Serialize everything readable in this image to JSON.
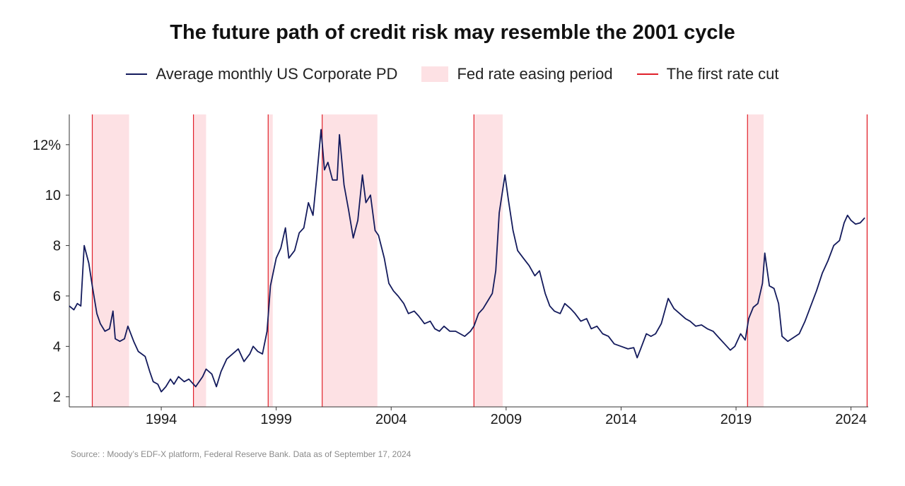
{
  "chart_data": {
    "type": "line",
    "title": "The future path of credit risk may resemble the 2001 cycle",
    "legend": [
      {
        "label": "Average monthly US Corporate PD",
        "kind": "line",
        "color": "#131a5c"
      },
      {
        "label": "Fed rate easing period",
        "kind": "box",
        "color": "#fde1e4"
      },
      {
        "label": "The first rate cut",
        "kind": "line",
        "color": "#e0202a"
      }
    ],
    "xlim": [
      1990.0,
      2024.75
    ],
    "ylim": [
      1.6,
      13.2
    ],
    "x_ticks": [
      1994,
      1999,
      2004,
      2009,
      2014,
      2019,
      2024
    ],
    "x_tick_labels": [
      "1994",
      "1999",
      "2004",
      "2009",
      "2014",
      "2019",
      "2024"
    ],
    "y_ticks": [
      2,
      4,
      6,
      8,
      10,
      12
    ],
    "y_tick_labels": [
      "2",
      "4",
      "6",
      "8",
      "10",
      "12%"
    ],
    "easing_periods": [
      [
        1991.0,
        1992.6
      ],
      [
        1995.4,
        1995.95
      ],
      [
        1998.65,
        1998.85
      ],
      [
        2001.0,
        2003.4
      ],
      [
        2007.6,
        2008.85
      ],
      [
        2019.5,
        2020.2
      ],
      [
        2024.7,
        2024.75
      ]
    ],
    "first_rate_cuts": [
      1991.0,
      1995.4,
      1998.65,
      2001.0,
      2007.6,
      2019.5,
      2024.7
    ],
    "series": [
      {
        "name": "Average monthly US Corporate PD",
        "color": "#131a5c",
        "points": [
          [
            1990.0,
            5.6
          ],
          [
            1990.2,
            5.45
          ],
          [
            1990.35,
            5.7
          ],
          [
            1990.5,
            5.6
          ],
          [
            1990.65,
            8.0
          ],
          [
            1990.85,
            7.3
          ],
          [
            1991.0,
            6.4
          ],
          [
            1991.2,
            5.3
          ],
          [
            1991.35,
            4.9
          ],
          [
            1991.55,
            4.6
          ],
          [
            1991.75,
            4.7
          ],
          [
            1991.9,
            5.4
          ],
          [
            1992.0,
            4.3
          ],
          [
            1992.2,
            4.2
          ],
          [
            1992.4,
            4.3
          ],
          [
            1992.55,
            4.8
          ],
          [
            1992.8,
            4.2
          ],
          [
            1993.0,
            3.8
          ],
          [
            1993.3,
            3.6
          ],
          [
            1993.5,
            3.0
          ],
          [
            1993.65,
            2.6
          ],
          [
            1993.85,
            2.5
          ],
          [
            1994.0,
            2.2
          ],
          [
            1994.2,
            2.4
          ],
          [
            1994.4,
            2.7
          ],
          [
            1994.55,
            2.5
          ],
          [
            1994.75,
            2.8
          ],
          [
            1995.0,
            2.6
          ],
          [
            1995.2,
            2.7
          ],
          [
            1995.5,
            2.4
          ],
          [
            1995.8,
            2.8
          ],
          [
            1995.95,
            3.1
          ],
          [
            1996.2,
            2.9
          ],
          [
            1996.4,
            2.4
          ],
          [
            1996.6,
            3.0
          ],
          [
            1996.85,
            3.5
          ],
          [
            1997.1,
            3.7
          ],
          [
            1997.35,
            3.9
          ],
          [
            1997.6,
            3.4
          ],
          [
            1997.85,
            3.7
          ],
          [
            1998.0,
            4.0
          ],
          [
            1998.2,
            3.8
          ],
          [
            1998.4,
            3.7
          ],
          [
            1998.6,
            4.6
          ],
          [
            1998.75,
            6.4
          ],
          [
            1999.0,
            7.5
          ],
          [
            1999.2,
            7.9
          ],
          [
            1999.4,
            8.7
          ],
          [
            1999.55,
            7.5
          ],
          [
            1999.8,
            7.8
          ],
          [
            2000.0,
            8.5
          ],
          [
            2000.2,
            8.7
          ],
          [
            2000.4,
            9.7
          ],
          [
            2000.6,
            9.2
          ],
          [
            2000.75,
            10.6
          ],
          [
            2000.95,
            12.6
          ],
          [
            2001.1,
            11.0
          ],
          [
            2001.25,
            11.3
          ],
          [
            2001.45,
            10.6
          ],
          [
            2001.65,
            10.6
          ],
          [
            2001.75,
            12.4
          ],
          [
            2001.95,
            10.4
          ],
          [
            2002.15,
            9.4
          ],
          [
            2002.35,
            8.3
          ],
          [
            2002.55,
            9.0
          ],
          [
            2002.75,
            10.8
          ],
          [
            2002.9,
            9.7
          ],
          [
            2003.1,
            10.0
          ],
          [
            2003.3,
            8.6
          ],
          [
            2003.45,
            8.4
          ],
          [
            2003.7,
            7.5
          ],
          [
            2003.9,
            6.5
          ],
          [
            2004.1,
            6.2
          ],
          [
            2004.3,
            6.0
          ],
          [
            2004.55,
            5.7
          ],
          [
            2004.75,
            5.3
          ],
          [
            2005.0,
            5.4
          ],
          [
            2005.2,
            5.2
          ],
          [
            2005.45,
            4.9
          ],
          [
            2005.7,
            5.0
          ],
          [
            2005.9,
            4.7
          ],
          [
            2006.1,
            4.6
          ],
          [
            2006.3,
            4.8
          ],
          [
            2006.55,
            4.6
          ],
          [
            2006.8,
            4.6
          ],
          [
            2007.0,
            4.5
          ],
          [
            2007.2,
            4.4
          ],
          [
            2007.45,
            4.6
          ],
          [
            2007.6,
            4.8
          ],
          [
            2007.8,
            5.3
          ],
          [
            2008.0,
            5.5
          ],
          [
            2008.2,
            5.8
          ],
          [
            2008.4,
            6.1
          ],
          [
            2008.55,
            7.0
          ],
          [
            2008.7,
            9.3
          ],
          [
            2008.95,
            10.8
          ],
          [
            2009.1,
            9.8
          ],
          [
            2009.3,
            8.6
          ],
          [
            2009.5,
            7.8
          ],
          [
            2009.75,
            7.5
          ],
          [
            2010.0,
            7.2
          ],
          [
            2010.25,
            6.8
          ],
          [
            2010.45,
            7.0
          ],
          [
            2010.7,
            6.1
          ],
          [
            2010.9,
            5.6
          ],
          [
            2011.1,
            5.4
          ],
          [
            2011.35,
            5.3
          ],
          [
            2011.55,
            5.7
          ],
          [
            2011.8,
            5.5
          ],
          [
            2012.0,
            5.3
          ],
          [
            2012.25,
            5.0
          ],
          [
            2012.5,
            5.1
          ],
          [
            2012.7,
            4.7
          ],
          [
            2012.95,
            4.8
          ],
          [
            2013.2,
            4.5
          ],
          [
            2013.45,
            4.4
          ],
          [
            2013.7,
            4.1
          ],
          [
            2014.0,
            4.0
          ],
          [
            2014.3,
            3.9
          ],
          [
            2014.55,
            3.95
          ],
          [
            2014.7,
            3.55
          ],
          [
            2014.85,
            3.9
          ],
          [
            2015.1,
            4.5
          ],
          [
            2015.3,
            4.4
          ],
          [
            2015.5,
            4.5
          ],
          [
            2015.75,
            4.9
          ],
          [
            2016.05,
            5.9
          ],
          [
            2016.3,
            5.5
          ],
          [
            2016.55,
            5.3
          ],
          [
            2016.8,
            5.1
          ],
          [
            2017.0,
            5.0
          ],
          [
            2017.25,
            4.8
          ],
          [
            2017.5,
            4.85
          ],
          [
            2017.75,
            4.7
          ],
          [
            2018.0,
            4.6
          ],
          [
            2018.25,
            4.35
          ],
          [
            2018.5,
            4.1
          ],
          [
            2018.75,
            3.85
          ],
          [
            2018.95,
            4.0
          ],
          [
            2019.2,
            4.5
          ],
          [
            2019.4,
            4.25
          ],
          [
            2019.55,
            5.1
          ],
          [
            2019.75,
            5.55
          ],
          [
            2019.95,
            5.7
          ],
          [
            2020.15,
            6.5
          ],
          [
            2020.25,
            7.7
          ],
          [
            2020.45,
            6.4
          ],
          [
            2020.65,
            6.3
          ],
          [
            2020.85,
            5.7
          ],
          [
            2021.0,
            4.4
          ],
          [
            2021.25,
            4.2
          ],
          [
            2021.5,
            4.35
          ],
          [
            2021.75,
            4.5
          ],
          [
            2022.0,
            5.0
          ],
          [
            2022.25,
            5.6
          ],
          [
            2022.5,
            6.2
          ],
          [
            2022.75,
            6.9
          ],
          [
            2023.0,
            7.4
          ],
          [
            2023.25,
            8.0
          ],
          [
            2023.5,
            8.2
          ],
          [
            2023.7,
            8.9
          ],
          [
            2023.85,
            9.2
          ],
          [
            2024.0,
            9.0
          ],
          [
            2024.2,
            8.85
          ],
          [
            2024.4,
            8.9
          ],
          [
            2024.6,
            9.1
          ]
        ]
      }
    ]
  },
  "source": "Source: : Moody’s EDF-X platform, Federal Reserve Bank. Data as of September 17, 2024"
}
